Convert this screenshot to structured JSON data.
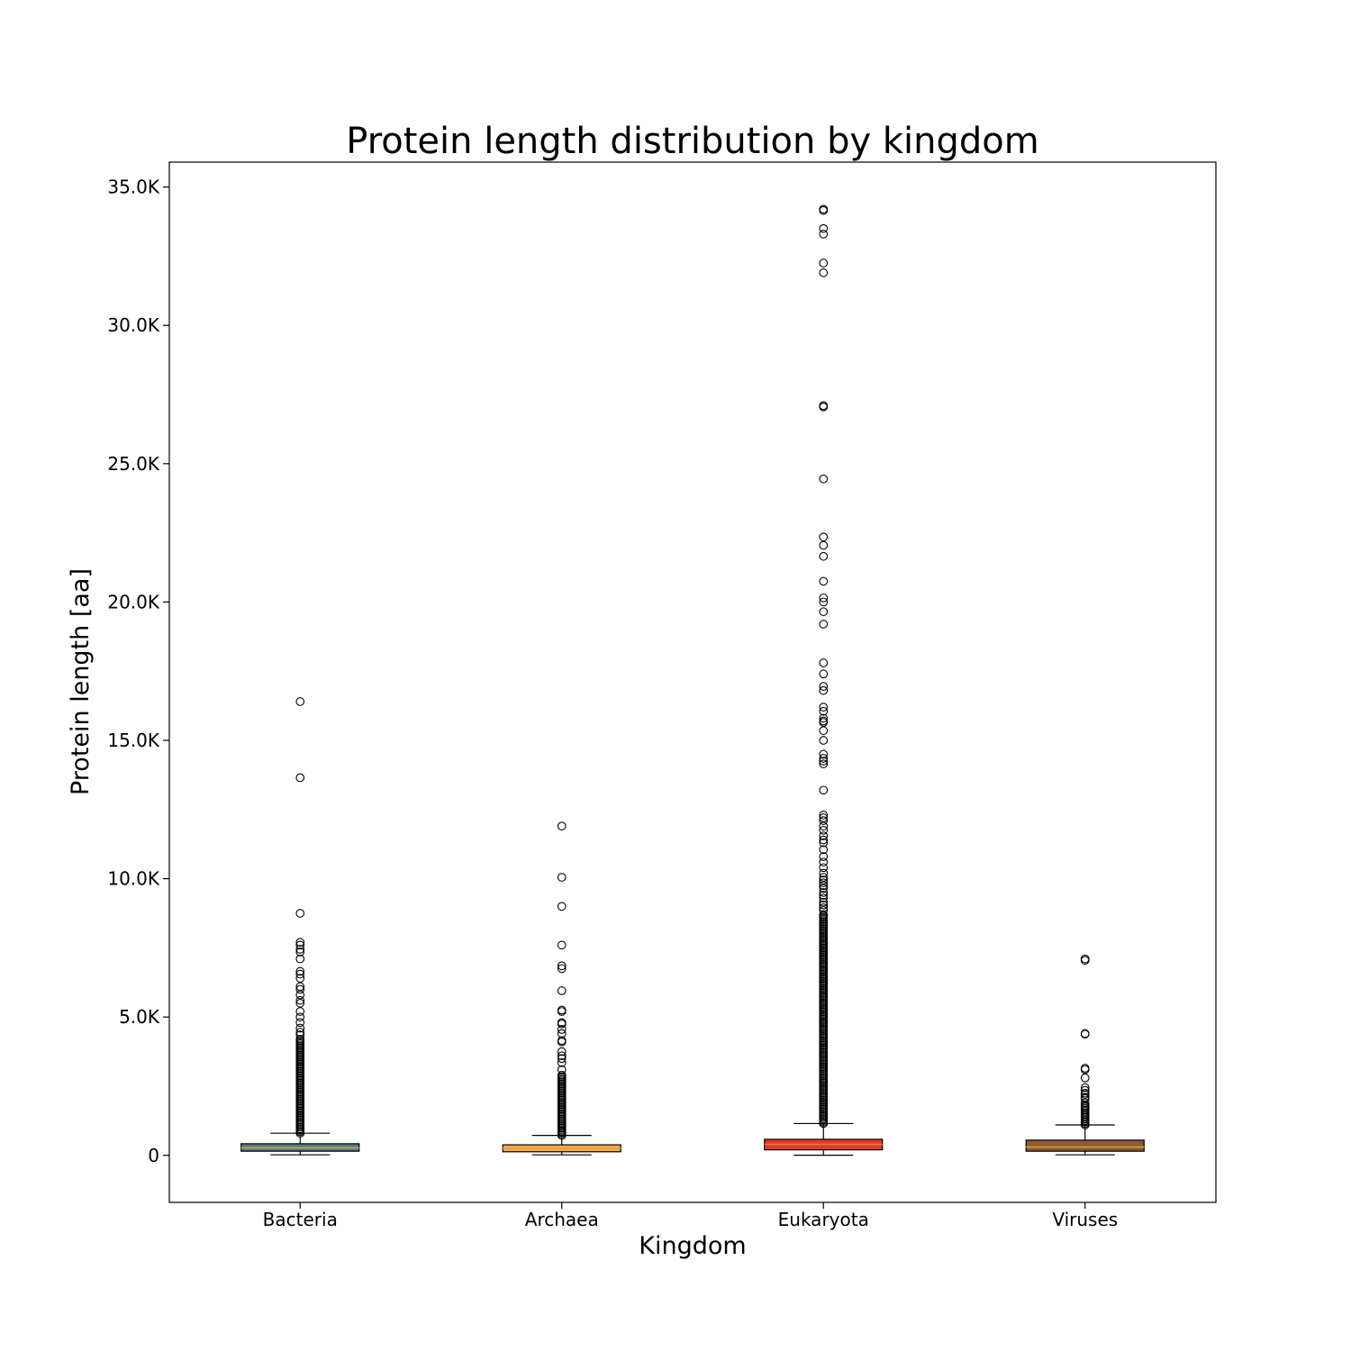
{
  "chart_data": {
    "type": "box",
    "title": "Protein length distribution by kingdom",
    "xlabel": "Kingdom",
    "ylabel": "Protein length [aa]",
    "ylim": [
      -1700,
      35900
    ],
    "yticks": [
      {
        "value": 0,
        "label": "0"
      },
      {
        "value": 5000,
        "label": "5.0K"
      },
      {
        "value": 10000,
        "label": "10.0K"
      },
      {
        "value": 15000,
        "label": "15.0K"
      },
      {
        "value": 20000,
        "label": "20.0K"
      },
      {
        "value": 25000,
        "label": "25.0K"
      },
      {
        "value": 30000,
        "label": "30.0K"
      },
      {
        "value": 35000,
        "label": "35.0K"
      }
    ],
    "grid": false,
    "legend": "none",
    "categories": [
      "Bacteria",
      "Archaea",
      "Eukaryota",
      "Viruses"
    ],
    "boxes": [
      {
        "category": "Bacteria",
        "color": "#4a7a9e",
        "median_color": "#e8a020",
        "whisker_low": 20,
        "q1": 150,
        "median": 270,
        "q3": 420,
        "whisker_high": 800,
        "outlier_range": [
          800,
          4200
        ],
        "outliers": [
          16400,
          13650,
          8750,
          7700,
          7600,
          7450,
          7350,
          7100,
          6650,
          6550,
          6400,
          6100,
          6000,
          5800,
          5600,
          5500,
          5200,
          5000,
          4800,
          4600,
          4450,
          4350
        ]
      },
      {
        "category": "Archaea",
        "color": "#f7ac5c",
        "median_color": "#e8a020",
        "whisker_low": 20,
        "q1": 130,
        "median": 250,
        "q3": 380,
        "whisker_high": 720,
        "outlier_range": [
          720,
          2900
        ],
        "outliers": [
          11900,
          10050,
          9000,
          7600,
          6850,
          6750,
          5950,
          5250,
          5200,
          4800,
          4750,
          4550,
          4400,
          4150,
          4100,
          3750,
          3600,
          3500,
          3350,
          3100
        ]
      },
      {
        "category": "Eukaryota",
        "color": "#e03a28",
        "median_color": "#f07838",
        "whisker_low": 5,
        "q1": 200,
        "median": 400,
        "q3": 580,
        "whisker_high": 1150,
        "outlier_range": [
          1150,
          8700
        ],
        "outliers": [
          34200,
          34150,
          33500,
          33300,
          32250,
          31900,
          27100,
          27050,
          24450,
          22350,
          22050,
          21650,
          20750,
          20150,
          20000,
          19650,
          19200,
          17800,
          17400,
          16950,
          16800,
          16200,
          16050,
          15800,
          15700,
          15650,
          15350,
          15000,
          14500,
          14350,
          14250,
          14150,
          13200,
          12300,
          12200,
          12100,
          11900,
          11750,
          11550,
          11400,
          11300,
          11050,
          10800,
          10600,
          10400,
          10200,
          10050,
          9950,
          9850,
          9750,
          9650,
          9500,
          9400,
          9300,
          9150,
          9050,
          8950,
          8850
        ]
      },
      {
        "category": "Viruses",
        "color": "#8c5a3c",
        "median_color": "#e8a020",
        "whisker_low": 20,
        "q1": 150,
        "median": 300,
        "q3": 550,
        "whisker_high": 1100,
        "outlier_range": [
          1100,
          1700
        ],
        "outliers": [
          7100,
          7050,
          4400,
          4380,
          3150,
          3100,
          2800,
          2450,
          2350,
          2250,
          2200,
          2100,
          2050,
          1900,
          1800,
          1750
        ]
      }
    ]
  }
}
